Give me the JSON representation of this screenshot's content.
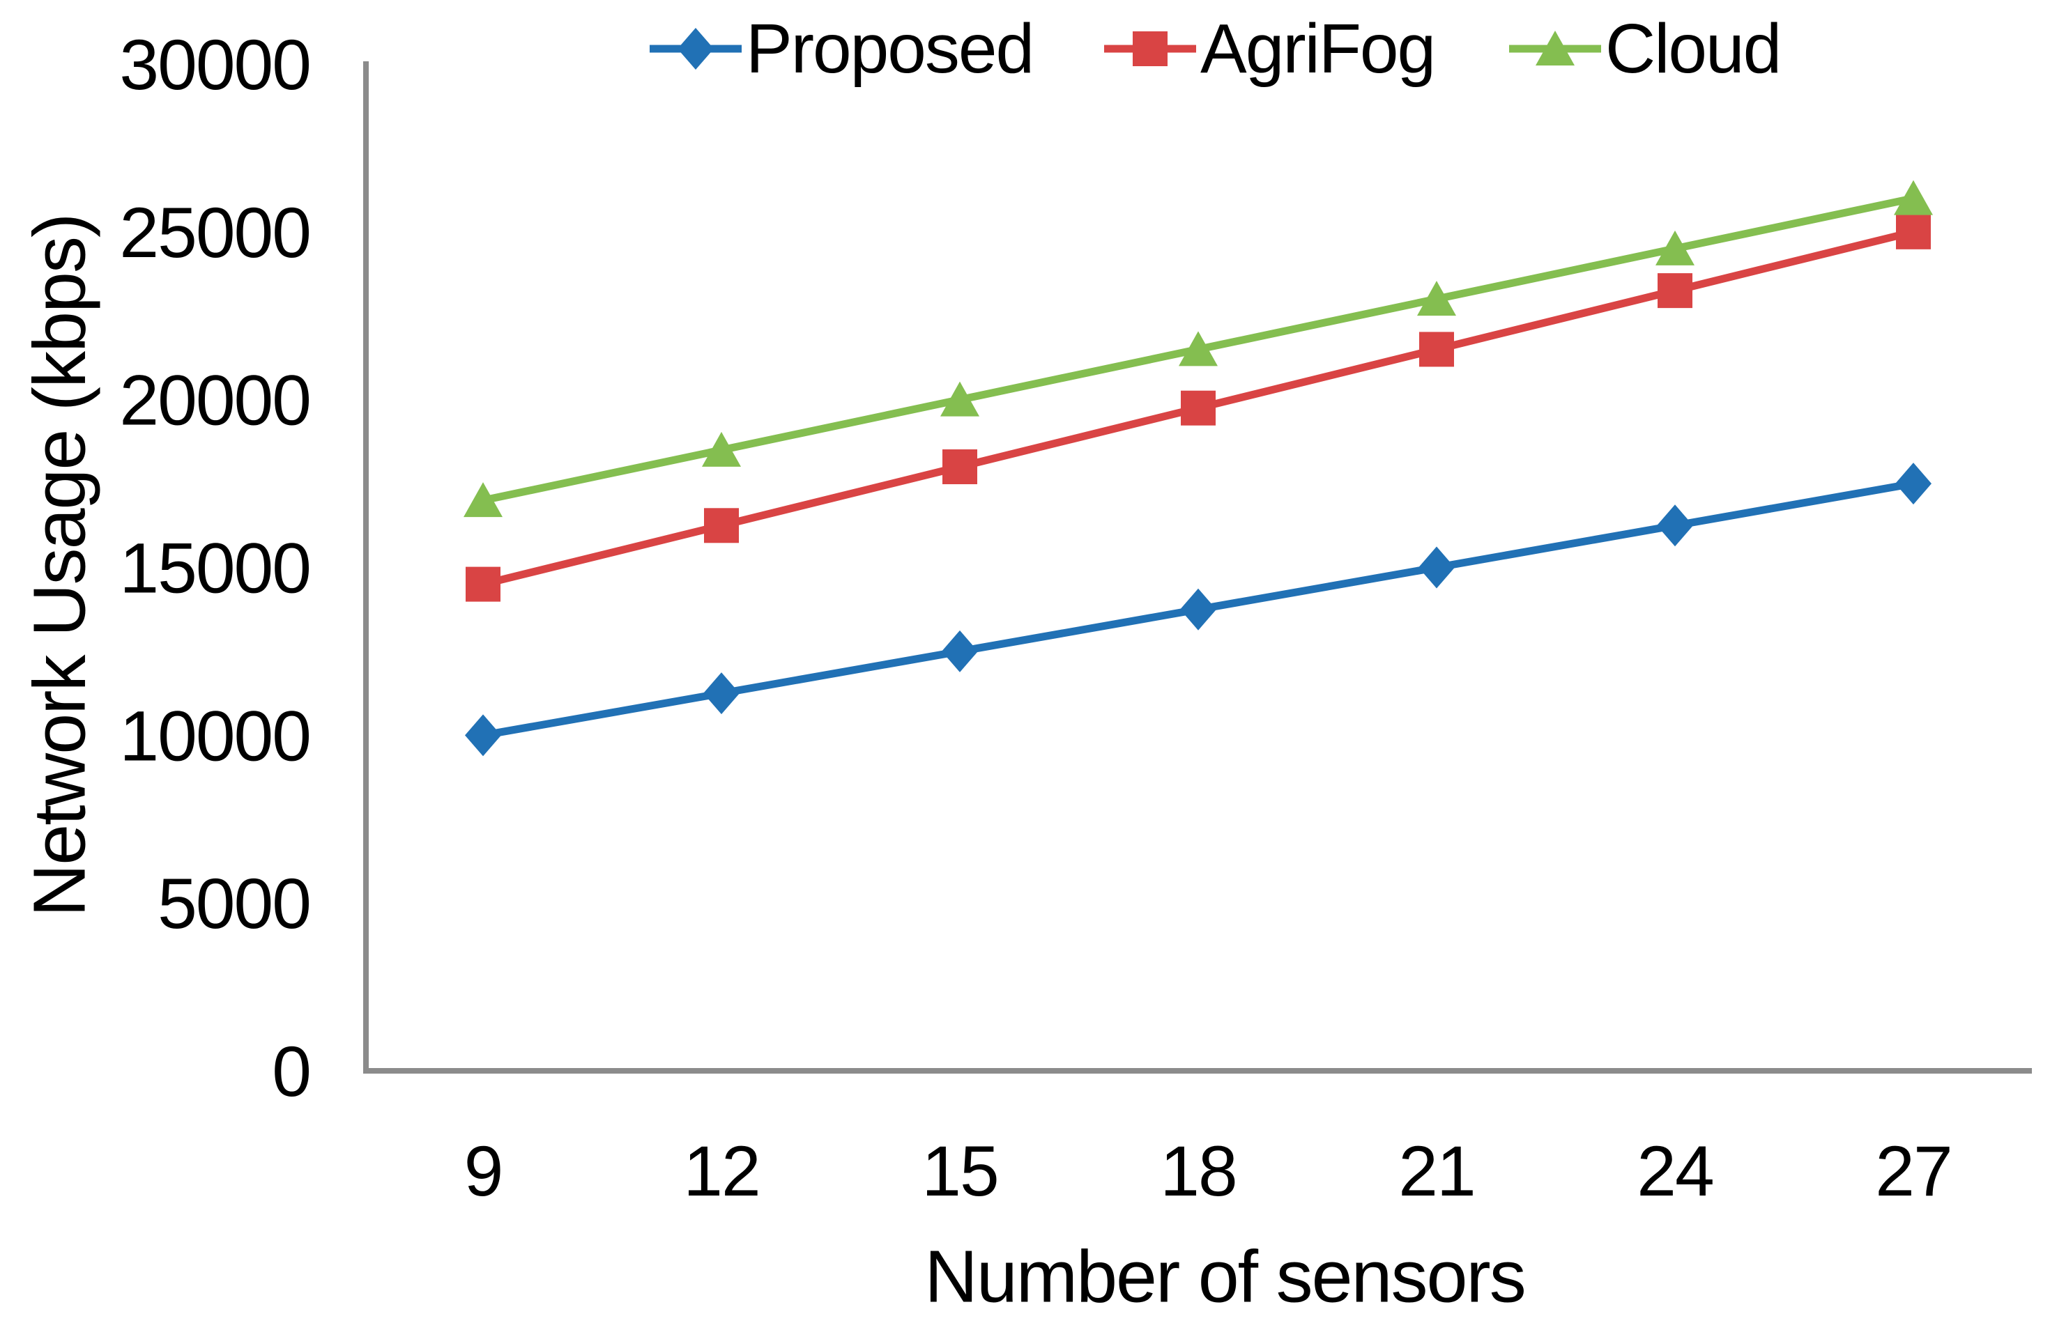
{
  "chart_data": {
    "type": "line",
    "title": "",
    "xlabel": "Number of sensors",
    "ylabel": "Network Usage (kbps)",
    "x": [
      9,
      12,
      15,
      18,
      21,
      24,
      27
    ],
    "xticklabels": [
      "9",
      "12",
      "15",
      "18",
      "21",
      "24",
      "27"
    ],
    "yticks": [
      0,
      5000,
      10000,
      15000,
      20000,
      25000,
      30000
    ],
    "yticklabels": [
      "0",
      "5000",
      "10000",
      "15000",
      "20000",
      "25000",
      "30000"
    ],
    "ylim": [
      0,
      30000
    ],
    "grid": false,
    "legend_position": "top",
    "series": [
      {
        "name": "Proposed",
        "marker": "diamond",
        "color": "#2171B5",
        "values": [
          10000,
          11250,
          12500,
          13750,
          15000,
          16250,
          17500
        ]
      },
      {
        "name": "AgriFog",
        "marker": "square",
        "color": "#D94444",
        "values": [
          14500,
          16250,
          18000,
          19750,
          21500,
          23250,
          25000
        ]
      },
      {
        "name": "Cloud",
        "marker": "triangle",
        "color": "#84BE50",
        "values": [
          17000,
          18500,
          20000,
          21500,
          23000,
          24500,
          26000
        ]
      }
    ],
    "axis_color": "#8B8B8B",
    "text_color": "#000000"
  }
}
